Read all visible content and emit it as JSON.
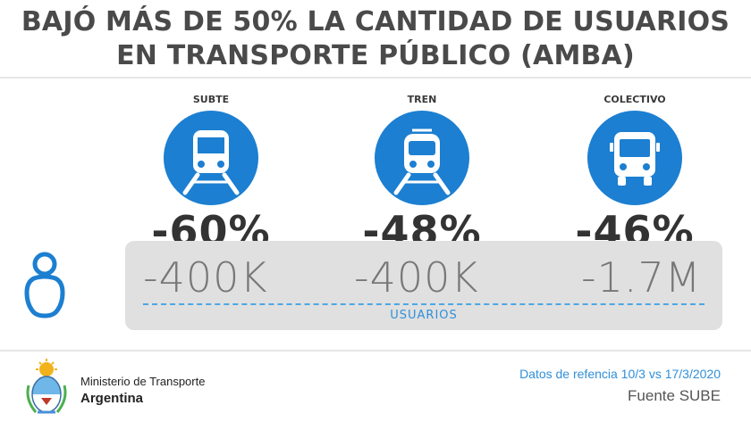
{
  "title": {
    "line1": "BAJÓ MÁS DE 50% LA CANTIDAD DE USUARIOS",
    "line2": "EN TRANSPORTE PÚBLICO (AMBA)"
  },
  "modes": [
    {
      "label": "SUBTE",
      "icon": "subway-icon",
      "change": "-60%",
      "users": "-400K"
    },
    {
      "label": "TREN",
      "icon": "train-icon",
      "change": "-48%",
      "users": "-400K"
    },
    {
      "label": "COLECTIVO",
      "icon": "bus-icon",
      "change": "-46%",
      "users": "-1.7M"
    }
  ],
  "users_label": "USUARIOS",
  "footer": {
    "ministry_line1": "Ministerio de Transporte",
    "ministry_line2": "Argentina",
    "dates": "Datos de refencia 10/3 vs 17/3/2020",
    "source": "Fuente SUBE"
  },
  "colors": {
    "accent_blue": "#1c7fd1",
    "text_dark": "#333333",
    "band_gray": "#e0e0e0"
  }
}
